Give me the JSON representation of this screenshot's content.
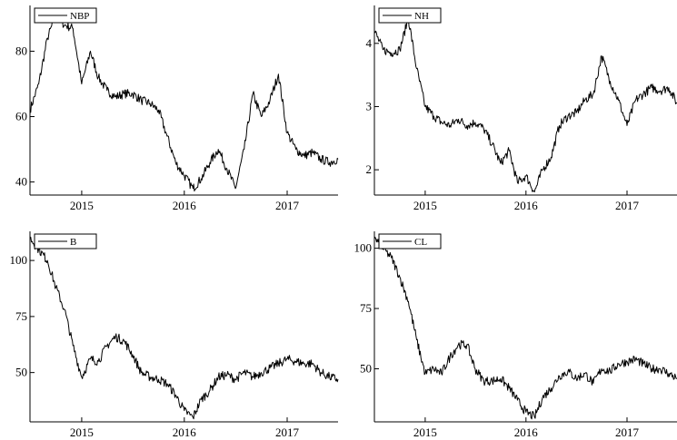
{
  "chart_data": [
    {
      "type": "line",
      "legend": "NBP",
      "legend_position": "top-left",
      "xlim": [
        "2014-07-01",
        "2017-07-01"
      ],
      "ylim": [
        36,
        94
      ],
      "x_ticks": [
        "2015",
        "2016",
        "2017"
      ],
      "y_ticks": [
        40,
        60,
        80
      ],
      "grid": false,
      "series": [
        {
          "name": "NBP",
          "x": [
            "2014-07-01",
            "2014-08-01",
            "2014-09-01",
            "2014-10-01",
            "2014-11-01",
            "2014-12-01",
            "2015-01-01",
            "2015-02-01",
            "2015-03-01",
            "2015-04-01",
            "2015-05-01",
            "2015-06-01",
            "2015-07-01",
            "2015-08-01",
            "2015-09-01",
            "2015-10-01",
            "2015-11-01",
            "2015-12-01",
            "2016-01-01",
            "2016-02-01",
            "2016-03-01",
            "2016-04-01",
            "2016-05-01",
            "2016-06-01",
            "2016-07-01",
            "2016-08-01",
            "2016-09-01",
            "2016-10-01",
            "2016-11-01",
            "2016-12-01",
            "2017-01-01",
            "2017-02-01",
            "2017-03-01",
            "2017-04-01",
            "2017-05-01",
            "2017-06-01",
            "2017-07-01"
          ],
          "values": [
            62,
            70,
            84,
            91,
            88,
            87,
            70,
            80,
            72,
            68,
            66,
            67,
            67,
            65,
            64,
            62,
            54,
            46,
            42,
            38,
            41,
            46,
            50,
            44,
            38,
            50,
            67,
            60,
            65,
            73,
            55,
            50,
            48,
            49,
            47,
            46,
            47
          ]
        }
      ]
    },
    {
      "type": "line",
      "legend": "NH",
      "legend_position": "top-left",
      "xlim": [
        "2014-07-01",
        "2017-07-01"
      ],
      "ylim": [
        1.6,
        4.6
      ],
      "x_ticks": [
        "2015",
        "2016",
        "2017"
      ],
      "y_ticks": [
        2,
        3,
        4
      ],
      "grid": false,
      "series": [
        {
          "name": "NH",
          "x": [
            "2014-07-01",
            "2014-08-01",
            "2014-09-01",
            "2014-10-01",
            "2014-11-01",
            "2014-12-01",
            "2015-01-01",
            "2015-02-01",
            "2015-03-01",
            "2015-04-01",
            "2015-05-01",
            "2015-06-01",
            "2015-07-01",
            "2015-08-01",
            "2015-09-01",
            "2015-10-01",
            "2015-11-01",
            "2015-12-01",
            "2016-01-01",
            "2016-02-01",
            "2016-03-01",
            "2016-04-01",
            "2016-05-01",
            "2016-06-01",
            "2016-07-01",
            "2016-08-01",
            "2016-09-01",
            "2016-10-01",
            "2016-11-01",
            "2016-12-01",
            "2017-01-01",
            "2017-02-01",
            "2017-03-01",
            "2017-04-01",
            "2017-05-01",
            "2017-06-01",
            "2017-07-01"
          ],
          "values": [
            4.2,
            3.9,
            3.85,
            3.9,
            4.4,
            3.6,
            3.0,
            2.85,
            2.75,
            2.7,
            2.8,
            2.7,
            2.75,
            2.65,
            2.4,
            2.1,
            2.3,
            1.8,
            1.9,
            1.65,
            2.0,
            2.2,
            2.7,
            2.85,
            2.9,
            3.1,
            3.2,
            3.8,
            3.4,
            3.1,
            2.7,
            3.1,
            3.2,
            3.3,
            3.25,
            3.3,
            3.05
          ]
        }
      ]
    },
    {
      "type": "line",
      "legend": "B",
      "legend_position": "top-left",
      "xlim": [
        "2014-07-01",
        "2017-07-01"
      ],
      "ylim": [
        28,
        113
      ],
      "x_ticks": [
        "2015",
        "2016",
        "2017"
      ],
      "y_ticks": [
        50,
        75,
        100
      ],
      "grid": false,
      "series": [
        {
          "name": "B",
          "x": [
            "2014-07-01",
            "2014-08-01",
            "2014-09-01",
            "2014-10-01",
            "2014-11-01",
            "2014-12-01",
            "2015-01-01",
            "2015-02-01",
            "2015-03-01",
            "2015-04-01",
            "2015-05-01",
            "2015-06-01",
            "2015-07-01",
            "2015-08-01",
            "2015-09-01",
            "2015-10-01",
            "2015-11-01",
            "2015-12-01",
            "2016-01-01",
            "2016-02-01",
            "2016-03-01",
            "2016-04-01",
            "2016-05-01",
            "2016-06-01",
            "2016-07-01",
            "2016-08-01",
            "2016-09-01",
            "2016-10-01",
            "2016-11-01",
            "2016-12-01",
            "2017-01-01",
            "2017-02-01",
            "2017-03-01",
            "2017-04-01",
            "2017-05-01",
            "2017-06-01",
            "2017-07-01"
          ],
          "values": [
            110,
            105,
            100,
            88,
            78,
            62,
            48,
            56,
            55,
            62,
            66,
            64,
            58,
            50,
            48,
            47,
            45,
            40,
            33,
            30,
            38,
            42,
            48,
            49,
            47,
            50,
            48,
            50,
            52,
            54,
            56,
            55,
            54,
            54,
            50,
            48,
            47
          ]
        }
      ]
    },
    {
      "type": "line",
      "legend": "CL",
      "legend_position": "top-left",
      "xlim": [
        "2014-07-01",
        "2017-07-01"
      ],
      "ylim": [
        28,
        107
      ],
      "x_ticks": [
        "2015",
        "2016",
        "2017"
      ],
      "y_ticks": [
        50,
        75,
        100
      ],
      "grid": false,
      "series": [
        {
          "name": "CL",
          "x": [
            "2014-07-01",
            "2014-08-01",
            "2014-09-01",
            "2014-10-01",
            "2014-11-01",
            "2014-12-01",
            "2015-01-01",
            "2015-02-01",
            "2015-03-01",
            "2015-04-01",
            "2015-05-01",
            "2015-06-01",
            "2015-07-01",
            "2015-08-01",
            "2015-09-01",
            "2015-10-01",
            "2015-11-01",
            "2015-12-01",
            "2016-01-01",
            "2016-02-01",
            "2016-03-01",
            "2016-04-01",
            "2016-05-01",
            "2016-06-01",
            "2016-07-01",
            "2016-08-01",
            "2016-09-01",
            "2016-10-01",
            "2016-11-01",
            "2016-12-01",
            "2017-01-01",
            "2017-02-01",
            "2017-03-01",
            "2017-04-01",
            "2017-05-01",
            "2017-06-01",
            "2017-07-01"
          ],
          "values": [
            104,
            100,
            96,
            88,
            78,
            62,
            48,
            50,
            48,
            55,
            60,
            60,
            50,
            45,
            45,
            46,
            42,
            37,
            32,
            30,
            38,
            42,
            47,
            49,
            46,
            48,
            44,
            50,
            49,
            52,
            53,
            54,
            52,
            50,
            50,
            48,
            46
          ]
        }
      ]
    }
  ]
}
